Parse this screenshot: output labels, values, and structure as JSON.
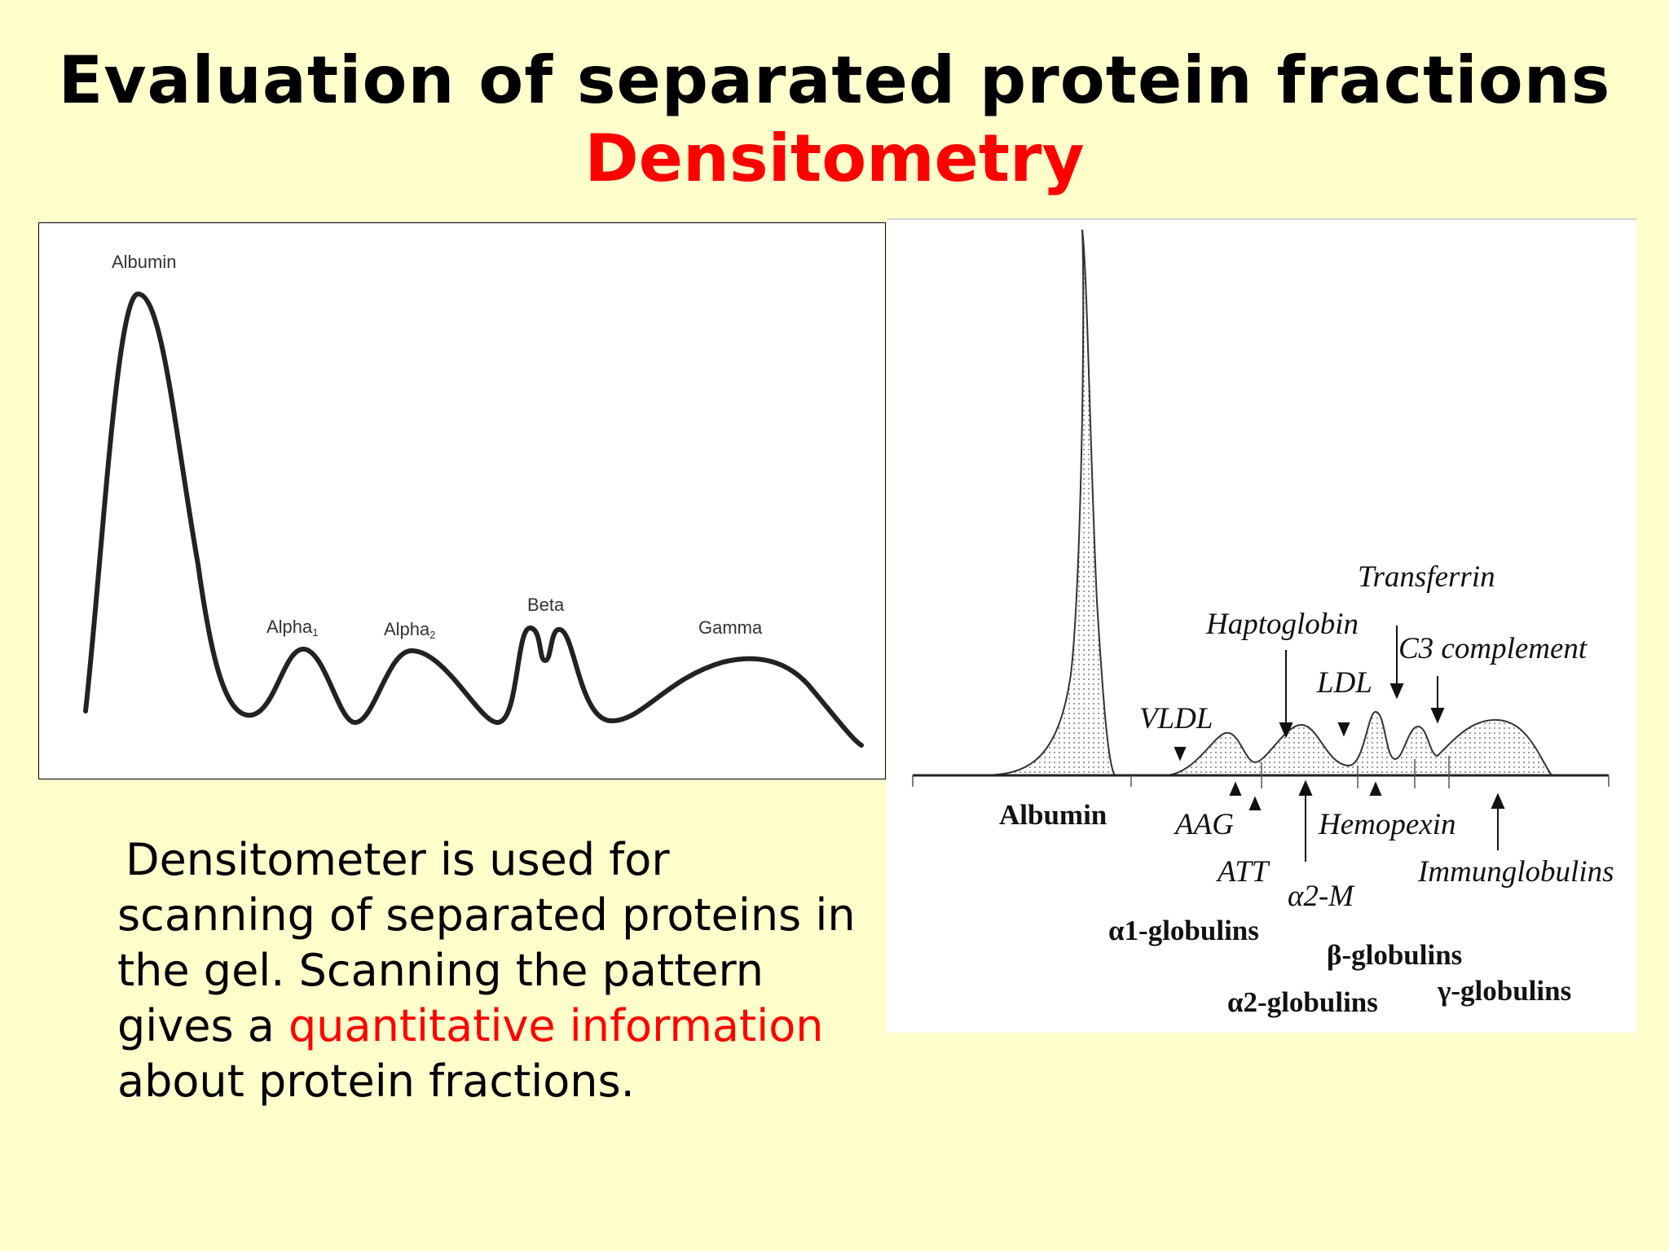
{
  "slide": {
    "title": "Evaluation of separated protein fractions",
    "subtitle": "Densitometry",
    "text": {
      "line1": "Densitometer is used for",
      "line2": "scanning of separated proteins in",
      "line3": "the gel. Scanning the pattern",
      "line4_pre": "gives a ",
      "line4_highlight": "quantitative information",
      "line5": "about protein fractions."
    },
    "colors": {
      "background": "#ffffcc",
      "title": "#000000",
      "accent": "#ff0000"
    }
  },
  "left_figure": {
    "labels": {
      "albumin": "Albumin",
      "alpha1_base": "Alpha",
      "alpha1_sub": "1",
      "alpha2_base": "Alpha",
      "alpha2_sub": "2",
      "beta": "Beta",
      "gamma": "Gamma"
    }
  },
  "right_figure": {
    "labels": {
      "albumin": "Albumin",
      "vldl": "VLDL",
      "haptoglobin": "Haptoglobin",
      "transferrin": "Transferrin",
      "c3": "C3 complement",
      "ldl": "LDL",
      "aag": "AAG",
      "att": "ATT",
      "a2m": "α2-M",
      "hemopexin": "Hemopexin",
      "immunoglobulins": "Immunglobulins",
      "a1_glob": "α1-globulins",
      "b_glob": "β-globulins",
      "a2_glob": "α2-globulins",
      "g_glob": "γ-globulins"
    }
  }
}
